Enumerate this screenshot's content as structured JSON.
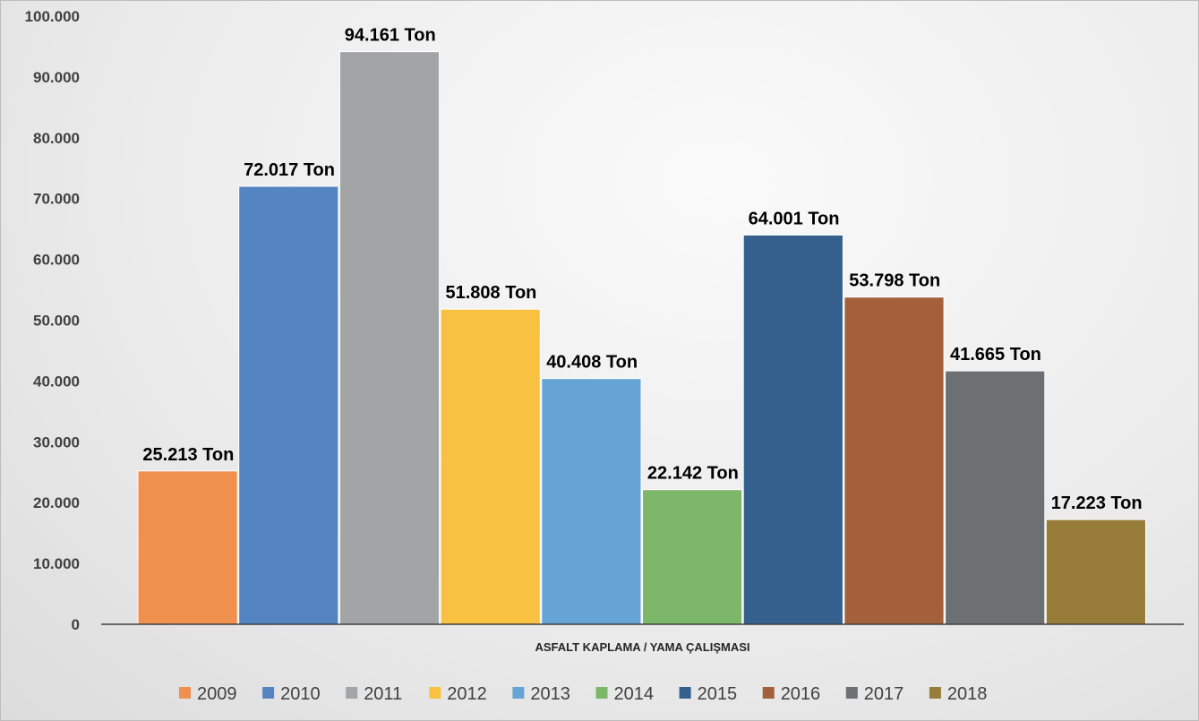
{
  "chart_data": {
    "type": "bar",
    "title": "",
    "xlabel": "ASFALT KAPLAMA / YAMA ÇALIŞMASI",
    "ylabel": "",
    "ylim": [
      0,
      100000
    ],
    "yticks": [
      {
        "value": 0,
        "label": "0"
      },
      {
        "value": 10000,
        "label": "10.000"
      },
      {
        "value": 20000,
        "label": "20.000"
      },
      {
        "value": 30000,
        "label": "30.000"
      },
      {
        "value": 40000,
        "label": "40.000"
      },
      {
        "value": 50000,
        "label": "50.000"
      },
      {
        "value": 60000,
        "label": "60.000"
      },
      {
        "value": 70000,
        "label": "70.000"
      },
      {
        "value": 80000,
        "label": "80.000"
      },
      {
        "value": 90000,
        "label": "90.000"
      },
      {
        "value": 100000,
        "label": "100.000"
      }
    ],
    "grid": false,
    "legend_position": "bottom",
    "categories": [
      "ASFALT KAPLAMA / YAMA ÇALIŞMASI"
    ],
    "series": [
      {
        "name": "2009",
        "value": 25213,
        "label": "25.213 Ton",
        "color": "#F0904F"
      },
      {
        "name": "2010",
        "value": 72017,
        "label": "72.017 Ton",
        "color": "#5584C2"
      },
      {
        "name": "2011",
        "value": 94161,
        "label": "94.161 Ton",
        "color": "#A2A4A5"
      },
      {
        "name": "2012",
        "value": 51808,
        "label": "51.808 Ton",
        "color": "#F8C141"
      },
      {
        "name": "2013",
        "value": 40408,
        "label": "40.408 Ton",
        "color": "#66A4D6"
      },
      {
        "name": "2014",
        "value": 22142,
        "label": "22.142 Ton",
        "color": "#7DB76A"
      },
      {
        "name": "2015",
        "value": 64001,
        "label": "64.001 Ton",
        "color": "#355F8C"
      },
      {
        "name": "2016",
        "value": 53798,
        "label": "53.798 Ton",
        "color": "#A3603A"
      },
      {
        "name": "2017",
        "value": 41665,
        "label": "41.665 Ton",
        "color": "#6D7072"
      },
      {
        "name": "2018",
        "value": 17223,
        "label": "17.223 Ton",
        "color": "#987C3A"
      }
    ]
  }
}
